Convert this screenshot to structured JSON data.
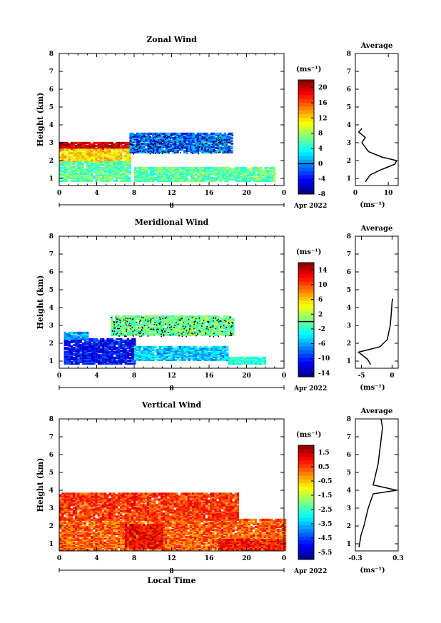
{
  "chart_data": [
    {
      "type": "heatmap",
      "title": "Zonal Wind",
      "ylabel": "Height (km)",
      "xlim": [
        0,
        24
      ],
      "ylim": [
        0.6,
        8
      ],
      "x_ticks": [
        "0",
        "4",
        "8",
        "12",
        "16",
        "20",
        "0"
      ],
      "y_ticks": [
        "1",
        "2",
        "3",
        "4",
        "5",
        "6",
        "7",
        "8"
      ],
      "date_label": "8",
      "month_label": "Apr 2022",
      "colorbar": {
        "unit": "(ms⁻¹)",
        "min": -8,
        "max": 22,
        "ticks": [
          "20",
          "16",
          "12",
          "8",
          "4",
          "0",
          "-4",
          "-8"
        ],
        "contour": 0
      },
      "regions": [
        {
          "x": [
            0,
            7.5
          ],
          "y": [
            2.6,
            3.0
          ],
          "value": 20
        },
        {
          "x": [
            0,
            7.5
          ],
          "y": [
            1.9,
            2.6
          ],
          "value": 12
        },
        {
          "x": [
            0,
            7.5
          ],
          "y": [
            0.8,
            1.9
          ],
          "value": 6
        },
        {
          "x": [
            7.5,
            18.5
          ],
          "y": [
            2.4,
            3.5
          ],
          "value": -1
        },
        {
          "x": [
            8,
            23
          ],
          "y": [
            0.8,
            1.6
          ],
          "value": 6
        }
      ],
      "average": {
        "title": "Average",
        "xlabel": "(ms⁻¹)",
        "xlim": [
          0,
          13
        ],
        "x_ticks": [
          "0",
          "10"
        ],
        "profile": [
          [
            3.0,
            0.8
          ],
          [
            4.5,
            1.2
          ],
          [
            8,
            1.5
          ],
          [
            12,
            1.8
          ],
          [
            12.5,
            2.0
          ],
          [
            8,
            2.2
          ],
          [
            4,
            2.5
          ],
          [
            2,
            3.0
          ],
          [
            3,
            3.3
          ],
          [
            1,
            3.6
          ],
          [
            2,
            3.8
          ]
        ]
      }
    },
    {
      "type": "heatmap",
      "title": "Meridional Wind",
      "ylabel": "Height (km)",
      "xlim": [
        0,
        24
      ],
      "ylim": [
        0.6,
        8
      ],
      "x_ticks": [
        "0",
        "4",
        "8",
        "12",
        "16",
        "20",
        "0"
      ],
      "y_ticks": [
        "1",
        "2",
        "3",
        "4",
        "5",
        "6",
        "7",
        "8"
      ],
      "date_label": "8",
      "month_label": "Apr 2022",
      "colorbar": {
        "unit": "(ms⁻¹)",
        "min": -15,
        "max": 16,
        "ticks": [
          "14",
          "10",
          "6",
          "2",
          "-2",
          "-6",
          "-10",
          "-14"
        ],
        "contour": 0
      },
      "regions": [
        {
          "x": [
            0.5,
            8
          ],
          "y": [
            0.8,
            2.2
          ],
          "value": -11
        },
        {
          "x": [
            0.5,
            3
          ],
          "y": [
            2.2,
            2.6
          ],
          "value": -6
        },
        {
          "x": [
            8,
            18
          ],
          "y": [
            1.0,
            1.8
          ],
          "value": -5
        },
        {
          "x": [
            5.5,
            18.5
          ],
          "y": [
            2.4,
            3.5
          ],
          "value": 0
        },
        {
          "x": [
            18,
            22
          ],
          "y": [
            0.8,
            1.2
          ],
          "value": -2
        }
      ],
      "average": {
        "title": "Average",
        "xlabel": "(ms⁻¹)",
        "xlim": [
          -6,
          1
        ],
        "x_ticks": [
          "-5",
          "0"
        ],
        "profile": [
          [
            -3.5,
            0.8
          ],
          [
            -4,
            1.1
          ],
          [
            -5.5,
            1.5
          ],
          [
            -2,
            1.8
          ],
          [
            -0.8,
            2.2
          ],
          [
            -0.3,
            3.0
          ],
          [
            -0.1,
            3.8
          ],
          [
            0,
            4.3
          ],
          [
            0.1,
            4.5
          ]
        ]
      }
    },
    {
      "type": "heatmap",
      "title": "Vertical Wind",
      "ylabel": "Height (km)",
      "xlabel": "Local Time",
      "xlim": [
        0,
        24
      ],
      "ylim": [
        0.6,
        8
      ],
      "x_ticks": [
        "0",
        "4",
        "8",
        "12",
        "16",
        "20",
        "0"
      ],
      "y_ticks": [
        "1",
        "2",
        "3",
        "4",
        "5",
        "6",
        "7",
        "8"
      ],
      "date_label": "8",
      "month_label": "Apr 2022",
      "colorbar": {
        "unit": "(ms⁻¹)",
        "min": -6,
        "max": 2,
        "ticks": [
          "1.5",
          "0.5",
          "-0.5",
          "-1.5",
          "-2.5",
          "-3.5",
          "-4.5",
          "-5.5"
        ]
      },
      "regions": [
        {
          "x": [
            0,
            24
          ],
          "y": [
            0.6,
            2.3
          ],
          "value": 0.3
        },
        {
          "x": [
            0,
            19
          ],
          "y": [
            2.3,
            3.8
          ],
          "value": 0.6
        },
        {
          "x": [
            7,
            11
          ],
          "y": [
            0.7,
            2.0
          ],
          "value": 1.1
        },
        {
          "x": [
            17,
            24
          ],
          "y": [
            0.6,
            1.2
          ],
          "value": 0.9
        }
      ],
      "average": {
        "title": "Average",
        "xlabel": "(ms⁻¹)",
        "xlim": [
          -0.3,
          0.3
        ],
        "x_ticks": [
          "-0.3",
          "0.3"
        ],
        "profile": [
          [
            -0.25,
            0.8
          ],
          [
            -0.22,
            1.5
          ],
          [
            -0.18,
            2.0
          ],
          [
            -0.12,
            3.0
          ],
          [
            -0.05,
            3.8
          ],
          [
            0.28,
            4.0
          ],
          [
            -0.05,
            4.3
          ],
          [
            0.02,
            5.5
          ],
          [
            0.05,
            6.5
          ],
          [
            0.08,
            7.5
          ],
          [
            0.06,
            8.0
          ]
        ]
      }
    }
  ]
}
